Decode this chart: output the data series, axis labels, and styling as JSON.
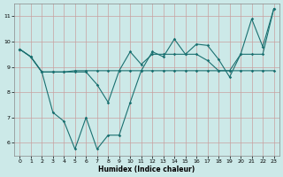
{
  "x": [
    0,
    1,
    2,
    3,
    4,
    5,
    6,
    7,
    8,
    9,
    10,
    11,
    12,
    13,
    14,
    15,
    16,
    17,
    18,
    19,
    20,
    21,
    22,
    23
  ],
  "line1": [
    9.7,
    9.4,
    8.8,
    8.8,
    8.8,
    8.85,
    8.85,
    8.85,
    8.85,
    8.85,
    8.85,
    8.85,
    8.85,
    8.85,
    8.85,
    8.85,
    8.85,
    8.85,
    8.85,
    8.85,
    8.85,
    8.85,
    8.85,
    8.85
  ],
  "line2": [
    9.7,
    9.4,
    8.8,
    7.2,
    6.85,
    5.75,
    7.0,
    5.75,
    6.3,
    6.3,
    7.6,
    8.85,
    9.6,
    9.4,
    10.1,
    9.5,
    9.9,
    9.85,
    9.3,
    8.6,
    9.5,
    10.9,
    9.8,
    11.3
  ],
  "line3": [
    9.7,
    9.4,
    8.8,
    8.8,
    8.8,
    8.8,
    8.8,
    8.3,
    7.6,
    8.85,
    9.6,
    9.1,
    9.5,
    9.5,
    9.5,
    9.5,
    9.5,
    9.25,
    8.85,
    8.85,
    9.5,
    9.5,
    9.5,
    11.3
  ],
  "bg_color": "#cce9e8",
  "grid_color": "#b8d8d7",
  "line_color": "#1a7070",
  "xlabel": "Humidex (Indice chaleur)",
  "xlim": [
    -0.5,
    23.5
  ],
  "ylim": [
    5.5,
    11.5
  ],
  "yticks": [
    6,
    7,
    8,
    9,
    10,
    11
  ],
  "xticks": [
    0,
    1,
    2,
    3,
    4,
    5,
    6,
    7,
    8,
    9,
    10,
    11,
    12,
    13,
    14,
    15,
    16,
    17,
    18,
    19,
    20,
    21,
    22,
    23
  ]
}
